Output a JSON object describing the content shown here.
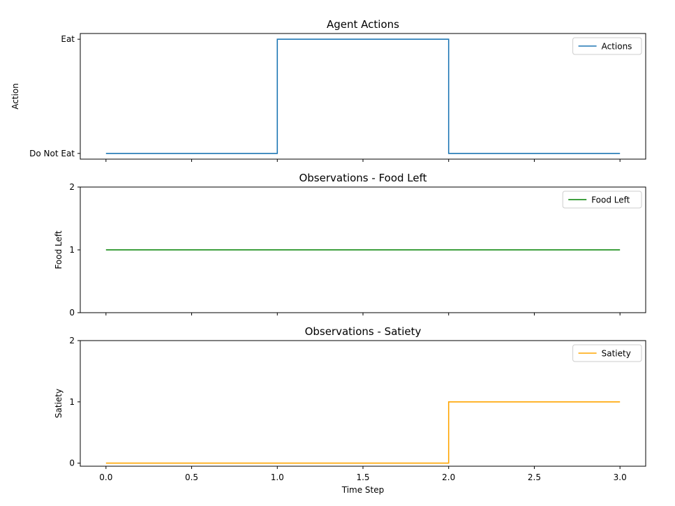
{
  "chart_data": [
    {
      "type": "line",
      "drawstyle": "steps-post",
      "title": "Agent Actions",
      "xlabel": "",
      "ylabel": "Action",
      "x": [
        0,
        1,
        2,
        3
      ],
      "xlim": [
        -0.15,
        3.15
      ],
      "ylim": [
        -0.05,
        1.05
      ],
      "xticks": [
        0.0,
        0.5,
        1.0,
        1.5,
        2.0,
        2.5,
        3.0
      ],
      "xtick_labels_visible": false,
      "yticks": [
        {
          "value": 0,
          "label": "Do Not Eat"
        },
        {
          "value": 1,
          "label": "Eat"
        }
      ],
      "series": [
        {
          "name": "Actions",
          "color": "#1f77b4",
          "values": [
            0,
            1,
            0,
            0
          ]
        }
      ],
      "legend": "top-right",
      "grid": false
    },
    {
      "type": "line",
      "drawstyle": "steps-post",
      "title": "Observations - Food Left",
      "xlabel": "",
      "ylabel": "Food Left",
      "x": [
        0,
        1,
        2,
        3
      ],
      "xlim": [
        -0.15,
        3.15
      ],
      "ylim": [
        0,
        2
      ],
      "xticks": [
        0.0,
        0.5,
        1.0,
        1.5,
        2.0,
        2.5,
        3.0
      ],
      "xtick_labels_visible": false,
      "yticks": [
        {
          "value": 0,
          "label": "0"
        },
        {
          "value": 1,
          "label": "1"
        },
        {
          "value": 2,
          "label": "2"
        }
      ],
      "series": [
        {
          "name": "Food Left",
          "color": "#008000",
          "values": [
            1,
            1,
            1,
            1
          ]
        }
      ],
      "legend": "top-right",
      "grid": false
    },
    {
      "type": "line",
      "drawstyle": "steps-post",
      "title": "Observations - Satiety",
      "xlabel": "Time Step",
      "ylabel": "Satiety",
      "x": [
        0,
        1,
        2,
        3
      ],
      "xlim": [
        -0.15,
        3.15
      ],
      "ylim": [
        -0.05,
        2
      ],
      "xticks": [
        0.0,
        0.5,
        1.0,
        1.5,
        2.0,
        2.5,
        3.0
      ],
      "xtick_labels": [
        "0.0",
        "0.5",
        "1.0",
        "1.5",
        "2.0",
        "2.5",
        "3.0"
      ],
      "xtick_labels_visible": true,
      "yticks": [
        {
          "value": 0,
          "label": "0"
        },
        {
          "value": 1,
          "label": "1"
        },
        {
          "value": 2,
          "label": "2"
        }
      ],
      "series": [
        {
          "name": "Satiety",
          "color": "#ffa500",
          "values": [
            0,
            0,
            1,
            1
          ]
        }
      ],
      "legend": "top-right",
      "grid": false
    }
  ]
}
